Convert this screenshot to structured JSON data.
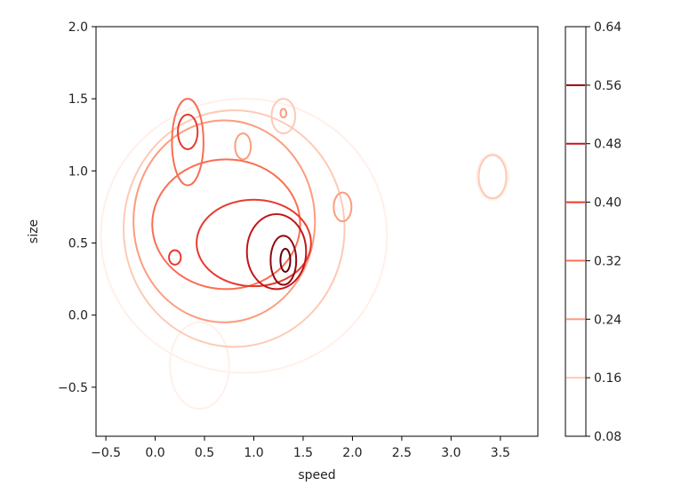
{
  "chart_data": {
    "type": "contour",
    "xlabel": "speed",
    "ylabel": "size",
    "xlim": [
      -0.6,
      3.88
    ],
    "ylim": [
      -0.84,
      2.0
    ],
    "xticks": [
      -0.5,
      0.0,
      0.5,
      1.0,
      1.5,
      2.0,
      2.5,
      3.0,
      3.5
    ],
    "xtick_labels": [
      "−0.5",
      "0.0",
      "0.5",
      "1.0",
      "1.5",
      "2.0",
      "2.5",
      "3.0",
      "3.5"
    ],
    "yticks": [
      -0.5,
      0.0,
      0.5,
      1.0,
      1.5,
      2.0
    ],
    "ytick_labels": [
      "−0.5",
      "0.0",
      "0.5",
      "1.0",
      "1.5",
      "2.0"
    ],
    "grid": false,
    "colormap": "Reds",
    "colorbar": {
      "range": [
        0.08,
        0.64
      ],
      "ticks": [
        0.08,
        0.16,
        0.24,
        0.32,
        0.4,
        0.48,
        0.56,
        0.64
      ],
      "tick_labels": [
        "0.08",
        "0.16",
        "0.24",
        "0.32",
        "0.40",
        "0.48",
        "0.56",
        "0.64"
      ]
    },
    "levels": [
      {
        "level": 0.08,
        "color": "#fff0e9",
        "blobs": [
          {
            "cx": 0.9,
            "cy": 0.55,
            "rx": 1.45,
            "ry": 0.95
          },
          {
            "cx": 0.45,
            "cy": -0.35,
            "rx": 0.3,
            "ry": 0.3
          },
          {
            "cx": 3.42,
            "cy": 0.96,
            "rx": 0.16,
            "ry": 0.16
          }
        ]
      },
      {
        "level": 0.16,
        "color": "#fdcab5",
        "blobs": [
          {
            "cx": 0.8,
            "cy": 0.6,
            "rx": 1.12,
            "ry": 0.82
          },
          {
            "cx": 3.42,
            "cy": 0.96,
            "rx": 0.14,
            "ry": 0.15
          },
          {
            "cx": 1.3,
            "cy": 1.38,
            "rx": 0.12,
            "ry": 0.12
          }
        ]
      },
      {
        "level": 0.24,
        "color": "#fc9d7f",
        "blobs": [
          {
            "cx": 0.7,
            "cy": 0.65,
            "rx": 0.92,
            "ry": 0.7
          },
          {
            "cx": 1.9,
            "cy": 0.75,
            "rx": 0.09,
            "ry": 0.1
          },
          {
            "cx": 0.89,
            "cy": 1.17,
            "rx": 0.08,
            "ry": 0.09
          },
          {
            "cx": 1.3,
            "cy": 1.4,
            "rx": 0.03,
            "ry": 0.03
          }
        ]
      },
      {
        "level": 0.32,
        "color": "#f96e53",
        "blobs": [
          {
            "cx": 0.72,
            "cy": 0.63,
            "rx": 0.75,
            "ry": 0.45
          },
          {
            "cx": 0.33,
            "cy": 1.2,
            "rx": 0.16,
            "ry": 0.3
          }
        ]
      },
      {
        "level": 0.4,
        "color": "#e63b2e",
        "blobs": [
          {
            "cx": 1.0,
            "cy": 0.5,
            "rx": 0.58,
            "ry": 0.3
          },
          {
            "cx": 0.33,
            "cy": 1.27,
            "rx": 0.1,
            "ry": 0.12
          },
          {
            "cx": 0.2,
            "cy": 0.4,
            "rx": 0.06,
            "ry": 0.05
          }
        ]
      },
      {
        "level": 0.48,
        "color": "#c3161b",
        "blobs": [
          {
            "cx": 1.23,
            "cy": 0.44,
            "rx": 0.3,
            "ry": 0.26
          }
        ]
      },
      {
        "level": 0.56,
        "color": "#8f0a12",
        "blobs": [
          {
            "cx": 1.3,
            "cy": 0.38,
            "rx": 0.13,
            "ry": 0.17
          }
        ]
      },
      {
        "level": 0.62,
        "color": "#67000d",
        "blobs": [
          {
            "cx": 1.32,
            "cy": 0.38,
            "rx": 0.05,
            "ry": 0.08
          }
        ]
      }
    ]
  }
}
